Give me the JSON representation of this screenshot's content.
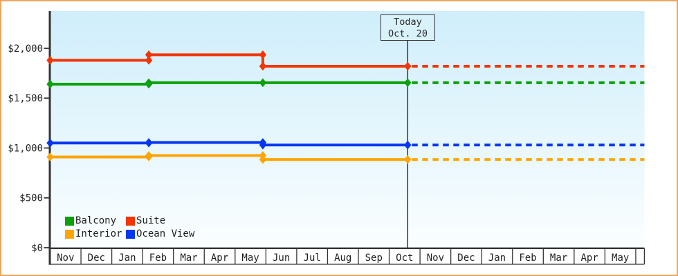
{
  "colors": {
    "frame_border": "#eda65c",
    "plot_top": "#cfeefb",
    "plot_bottom": "#fbfeff",
    "axis": "#333333",
    "label_text": "#1f1f1f",
    "today_box_bg": "#d8f1fb"
  },
  "chart_data": {
    "type": "line",
    "style": "step-after",
    "grid": false,
    "legend_position": "bottom-left",
    "x_months": [
      "Nov",
      "Dec",
      "Jan",
      "Feb",
      "Mar",
      "Apr",
      "May",
      "Jun",
      "Jul",
      "Aug",
      "Sep",
      "Oct",
      "Nov",
      "Dec",
      "Jan",
      "Feb",
      "Mar",
      "Apr",
      "May"
    ],
    "y_ticks": [
      {
        "label": "$0",
        "value": 0
      },
      {
        "label": "$500",
        "value": 500
      },
      {
        "label": "$1,000",
        "value": 1000
      },
      {
        "label": "$1,500",
        "value": 1500
      },
      {
        "label": "$2,000",
        "value": 2000
      }
    ],
    "y_axis_range": [
      0,
      2370
    ],
    "series": [
      {
        "name": "Balcony",
        "color": "#0ba10b",
        "points": [
          {
            "month_offset": 0,
            "price": 1640
          },
          {
            "month_offset": 3.2,
            "price": 1655
          },
          {
            "month_offset": 6.9,
            "price": 1655
          }
        ]
      },
      {
        "name": "Suite",
        "color": "#f23505",
        "points": [
          {
            "month_offset": 0,
            "price": 1880
          },
          {
            "month_offset": 3.2,
            "price": 1935
          },
          {
            "month_offset": 6.9,
            "price": 1820
          }
        ]
      },
      {
        "name": "Interior",
        "color": "#ffa502",
        "points": [
          {
            "month_offset": 0,
            "price": 910
          },
          {
            "month_offset": 3.2,
            "price": 925
          },
          {
            "month_offset": 6.9,
            "price": 885
          }
        ]
      },
      {
        "name": "Ocean View",
        "color": "#0636f0",
        "points": [
          {
            "month_offset": 0,
            "price": 1050
          },
          {
            "month_offset": 3.2,
            "price": 1055
          },
          {
            "month_offset": 6.9,
            "price": 1030
          }
        ]
      }
    ],
    "today_marker": {
      "line1": "Today",
      "line2": "Oct. 20",
      "month_offset": 11.6
    },
    "dashed_projection_end_offset": 19.28
  },
  "legend": {
    "items": [
      {
        "label": "Balcony",
        "color": "#0ba10b"
      },
      {
        "label": "Suite",
        "color": "#f23505"
      },
      {
        "label": "Interior",
        "color": "#ffa502"
      },
      {
        "label": "Ocean View",
        "color": "#0636f0"
      }
    ]
  }
}
